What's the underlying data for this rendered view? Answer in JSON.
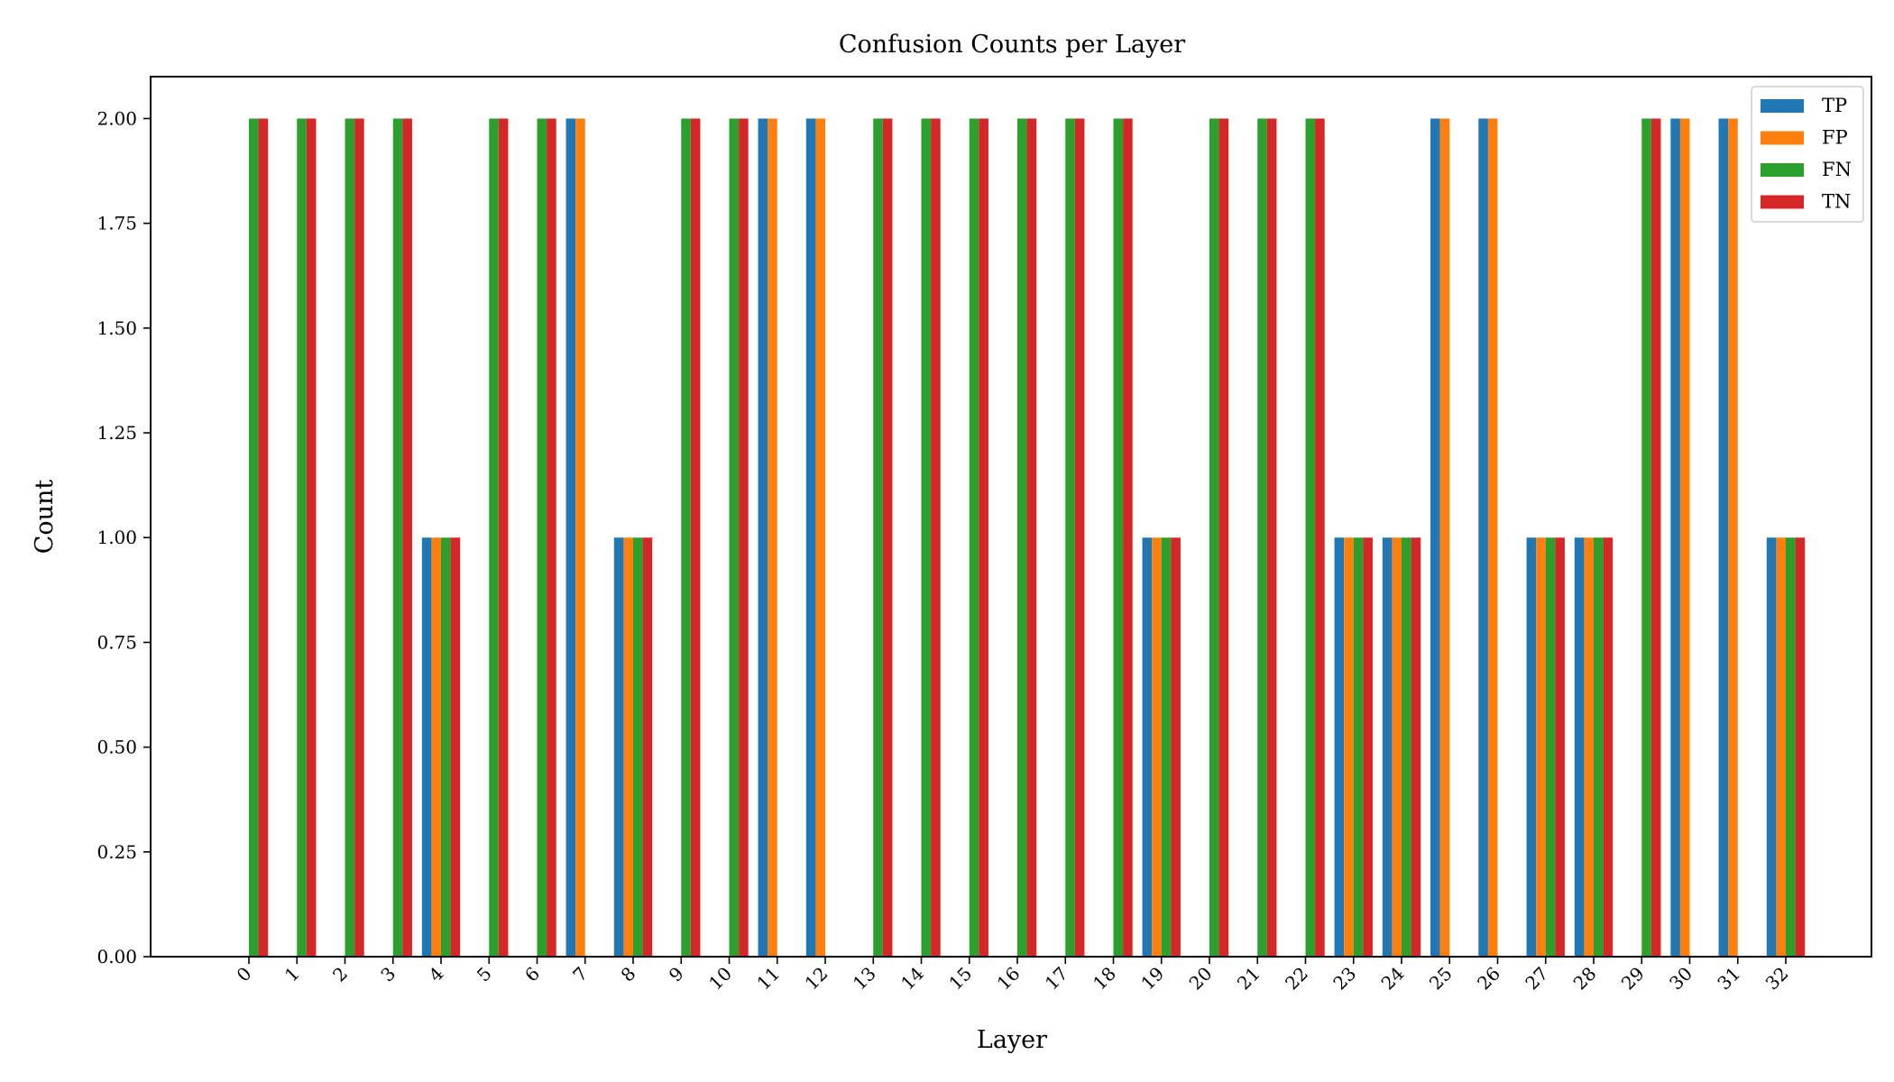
{
  "chart_data": {
    "type": "bar",
    "title": "Confusion Counts per Layer",
    "xlabel": "Layer",
    "ylabel": "Count",
    "ylim": [
      0,
      2.1
    ],
    "yticks": [
      "0.00",
      "0.25",
      "0.50",
      "0.75",
      "1.00",
      "1.25",
      "1.50",
      "1.75",
      "2.00"
    ],
    "categories": [
      "0",
      "1",
      "2",
      "3",
      "4",
      "5",
      "6",
      "7",
      "8",
      "9",
      "10",
      "11",
      "12",
      "13",
      "14",
      "15",
      "16",
      "17",
      "18",
      "19",
      "20",
      "21",
      "22",
      "23",
      "24",
      "25",
      "26",
      "27",
      "28",
      "29",
      "30",
      "31",
      "32"
    ],
    "legend_position": "top-right",
    "grid": false,
    "series": [
      {
        "name": "TP",
        "color": "#1f77b4",
        "values": [
          0,
          0,
          0,
          0,
          1,
          0,
          0,
          2,
          1,
          0,
          0,
          2,
          2,
          0,
          0,
          0,
          0,
          0,
          0,
          1,
          0,
          0,
          0,
          1,
          1,
          2,
          2,
          1,
          1,
          0,
          2,
          2,
          1
        ]
      },
      {
        "name": "FP",
        "color": "#ff7f0e",
        "values": [
          0,
          0,
          0,
          0,
          1,
          0,
          0,
          2,
          1,
          0,
          0,
          2,
          2,
          0,
          0,
          0,
          0,
          0,
          0,
          1,
          0,
          0,
          0,
          1,
          1,
          2,
          2,
          1,
          1,
          0,
          2,
          2,
          1
        ]
      },
      {
        "name": "FN",
        "color": "#2ca02c",
        "values": [
          2,
          2,
          2,
          2,
          1,
          2,
          2,
          0,
          1,
          2,
          2,
          0,
          0,
          2,
          2,
          2,
          2,
          2,
          2,
          1,
          2,
          2,
          2,
          1,
          1,
          0,
          0,
          1,
          1,
          2,
          0,
          0,
          1
        ]
      },
      {
        "name": "TN",
        "color": "#d62728",
        "values": [
          2,
          2,
          2,
          2,
          1,
          2,
          2,
          0,
          1,
          2,
          2,
          0,
          0,
          2,
          2,
          2,
          2,
          2,
          2,
          1,
          2,
          2,
          2,
          1,
          1,
          0,
          0,
          1,
          1,
          2,
          0,
          0,
          1
        ]
      }
    ]
  }
}
